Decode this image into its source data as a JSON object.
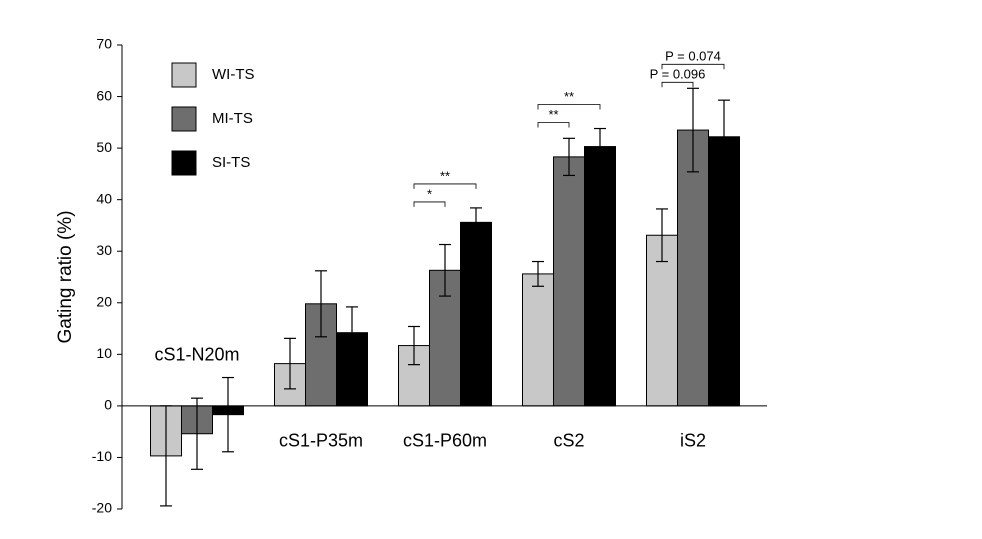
{
  "chart_data": {
    "type": "bar",
    "y_label": "Gating ratio (%)",
    "categories": [
      "cS1-N20m",
      "cS1-P35m",
      "cS1-P60m",
      "cS2",
      "iS2"
    ],
    "series": [
      {
        "name": "WI-TS",
        "color": "#c8c8c8",
        "values": [
          -9.7,
          8.2,
          11.7,
          25.6,
          33.1
        ],
        "errors": [
          9.7,
          4.9,
          3.7,
          2.4,
          5.1
        ]
      },
      {
        "name": "MI-TS",
        "color": "#6e6e6e",
        "values": [
          -5.4,
          19.8,
          26.3,
          48.3,
          53.5
        ],
        "errors": [
          6.9,
          6.4,
          5.0,
          3.6,
          8.1
        ]
      },
      {
        "name": "SI-TS",
        "color": "#000000",
        "values": [
          -1.7,
          14.2,
          35.6,
          50.3,
          52.2
        ],
        "errors": [
          7.2,
          5.0,
          2.8,
          3.5,
          7.1
        ]
      }
    ],
    "ylim": [
      -20,
      70
    ],
    "yticks": [
      -20,
      -10,
      0,
      10,
      20,
      30,
      40,
      50,
      60,
      70
    ],
    "annotations": [
      {
        "category": "cS1-P60m",
        "between": [
          "WI-TS",
          "MI-TS"
        ],
        "text": "*"
      },
      {
        "category": "cS1-P60m",
        "between": [
          "WI-TS",
          "SI-TS"
        ],
        "text": "**"
      },
      {
        "category": "cS2",
        "between": [
          "WI-TS",
          "MI-TS"
        ],
        "text": "**"
      },
      {
        "category": "cS2",
        "between": [
          "WI-TS",
          "SI-TS"
        ],
        "text": "**"
      },
      {
        "category": "iS2",
        "between": [
          "WI-TS",
          "MI-TS"
        ],
        "text": "P = 0.096"
      },
      {
        "category": "iS2",
        "between": [
          "WI-TS",
          "SI-TS"
        ],
        "text": "P = 0.074"
      }
    ]
  }
}
